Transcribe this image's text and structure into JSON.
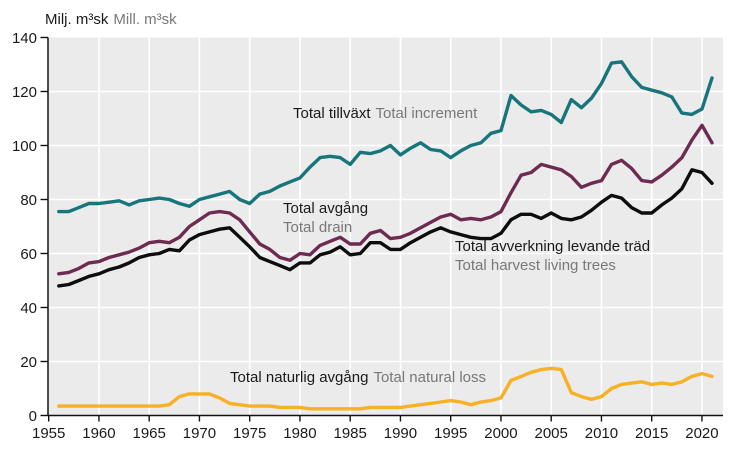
{
  "title": {
    "primary": "Milj. m³sk",
    "secondary": "Mill. m³sk"
  },
  "colors": {
    "plot_background": "#ebebeb",
    "gridline": "#ffffff",
    "axis": "#111111",
    "text_dark": "#1a1a1a",
    "text_gray": "#787878",
    "increment": "#17757b",
    "drain": "#6e2b50",
    "harvest": "#0d0d0d",
    "natural_loss": "#f8b024"
  },
  "chart_data": {
    "type": "line",
    "title": "Milj. m³sk Mill. m³sk",
    "xlabel": "",
    "ylabel": "Milj. m³sk / Mill. m³sk",
    "xlim": [
      1955,
      2022
    ],
    "ylim": [
      0,
      140
    ],
    "xticks": [
      1955,
      1960,
      1965,
      1970,
      1975,
      1980,
      1985,
      1990,
      1995,
      2000,
      2005,
      2010,
      2015,
      2020
    ],
    "yticks": [
      0,
      20,
      40,
      60,
      80,
      100,
      120,
      140
    ],
    "grid": true,
    "legend_position": "labels-on-chart",
    "x": [
      1956,
      1957,
      1958,
      1959,
      1960,
      1961,
      1962,
      1963,
      1964,
      1965,
      1966,
      1967,
      1968,
      1969,
      1970,
      1971,
      1972,
      1973,
      1974,
      1975,
      1976,
      1977,
      1978,
      1979,
      1980,
      1981,
      1982,
      1983,
      1984,
      1985,
      1986,
      1987,
      1988,
      1989,
      1990,
      1991,
      1992,
      1993,
      1994,
      1995,
      1996,
      1997,
      1998,
      1999,
      2000,
      2001,
      2002,
      2003,
      2004,
      2005,
      2006,
      2007,
      2008,
      2009,
      2010,
      2011,
      2012,
      2013,
      2014,
      2015,
      2016,
      2017,
      2018,
      2019,
      2020,
      2021
    ],
    "series": [
      {
        "key": "increment",
        "name_sv": "Total tillväxt",
        "name_en": "Total increment",
        "color": "#17757b",
        "values": [
          75.5,
          75.5,
          77,
          78.5,
          78.5,
          79,
          79.5,
          78,
          79.5,
          80,
          80.5,
          80,
          78.5,
          77.5,
          80,
          81,
          82,
          83,
          80,
          78.5,
          82,
          83,
          85,
          86.5,
          88,
          92,
          95.5,
          96,
          95.5,
          93,
          97.5,
          97,
          98,
          100,
          96.5,
          99,
          101,
          98.5,
          98,
          95.5,
          98,
          100,
          101,
          104.5,
          105.5,
          118.5,
          115,
          112.5,
          113,
          111.5,
          108.5,
          117,
          114,
          117.5,
          123,
          130.5,
          131,
          125.5,
          121.5,
          120.5,
          119.5,
          118,
          112,
          111.5,
          113.5,
          125
        ]
      },
      {
        "key": "drain",
        "name_sv": "Total avgång",
        "name_en": "Total drain",
        "color": "#6e2b50",
        "values": [
          52.5,
          53,
          54.5,
          56.5,
          57,
          58.5,
          59.5,
          60.5,
          62,
          64,
          64.5,
          64,
          66,
          70,
          72.5,
          75,
          75.5,
          75,
          72.5,
          68,
          63.5,
          61.5,
          58.5,
          57.5,
          60,
          59.5,
          63,
          64.5,
          66,
          63.5,
          63.5,
          67.5,
          68.5,
          65.5,
          66,
          67.5,
          69.5,
          71.5,
          73.5,
          74.5,
          72.5,
          73,
          72.5,
          73.5,
          75.5,
          82.5,
          89,
          90,
          93,
          92,
          91,
          88.5,
          84.5,
          86,
          87,
          93,
          94.5,
          91.5,
          87,
          86.5,
          89,
          92,
          95.5,
          102,
          107.5,
          101
        ]
      },
      {
        "key": "harvest",
        "name_sv": "Total avverkning levande träd",
        "name_en": "Total harvest living trees",
        "color": "#0d0d0d",
        "values": [
          48,
          48.5,
          50,
          51.5,
          52.5,
          54,
          55,
          56.5,
          58.5,
          59.5,
          60,
          61.5,
          61,
          65,
          67,
          68,
          69,
          69.5,
          66,
          62.5,
          58.5,
          57,
          55.5,
          54,
          56.5,
          56.5,
          59.5,
          60.5,
          62.5,
          59.5,
          60,
          64,
          64,
          61.5,
          61.5,
          64,
          66,
          68,
          69.5,
          68,
          67,
          66,
          65.5,
          65.5,
          67.5,
          72.5,
          74.5,
          74.5,
          73,
          75,
          73,
          72.5,
          73.5,
          76,
          79,
          81.5,
          80.5,
          77,
          75,
          75,
          78,
          80.5,
          84,
          91,
          90,
          86
        ]
      },
      {
        "key": "natural_loss",
        "name_sv": "Total naturlig avgång",
        "name_en": "Total natural loss",
        "color": "#f8b024",
        "values": [
          3.5,
          3.5,
          3.5,
          3.5,
          3.5,
          3.5,
          3.5,
          3.5,
          3.5,
          3.5,
          3.5,
          4,
          7,
          8,
          8,
          8,
          6.5,
          4.5,
          4,
          3.5,
          3.5,
          3.5,
          3,
          3,
          3,
          2.5,
          2.5,
          2.5,
          2.5,
          2.5,
          2.5,
          3,
          3,
          3,
          3,
          3.5,
          4,
          4.5,
          5,
          5.5,
          5,
          4,
          5,
          5.5,
          6.5,
          13,
          14.5,
          16,
          17,
          17.5,
          17,
          8.5,
          7,
          6,
          7,
          10,
          11.5,
          12,
          12.5,
          11.5,
          12,
          11.5,
          12.5,
          14.5,
          15.5,
          14.5
        ]
      }
    ],
    "annotations": [
      {
        "primary": "Total tillväxt",
        "secondary": "Total increment"
      },
      {
        "primary": "Total avgång",
        "secondary": "Total drain"
      },
      {
        "primary": "Total avverkning levande träd",
        "secondary": "Total harvest living trees"
      },
      {
        "primary": "Total naturlig avgång",
        "secondary": "Total natural loss"
      }
    ]
  },
  "axes": {
    "x_tick_labels": [
      "1955",
      "1960",
      "1965",
      "1970",
      "1975",
      "1980",
      "1985",
      "1990",
      "1995",
      "2000",
      "2005",
      "2010",
      "2015",
      "2020"
    ],
    "y_tick_labels": [
      "0",
      "20",
      "40",
      "60",
      "80",
      "100",
      "120",
      "140"
    ]
  }
}
